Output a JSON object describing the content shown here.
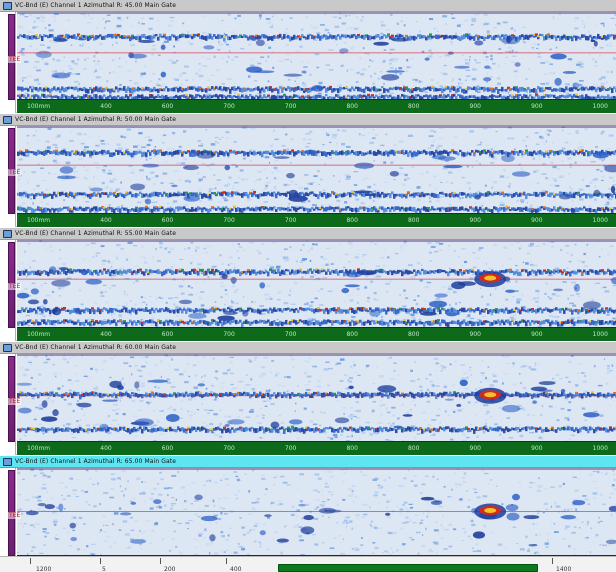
{
  "panels": [
    {
      "title": "VC-Bnd (E) Channel 1 Azimuthal  R: 45.00 Main Gate",
      "gate_label": "TEE",
      "active": false
    },
    {
      "title": "VC-Bnd (E) Channel 1 Azimuthal  R: 50.00 Main Gate",
      "gate_label": "TEE",
      "active": false
    },
    {
      "title": "VC-Bnd (E) Channel 1 Azimuthal  R: 55.00 Main Gate",
      "gate_label": "TEE",
      "active": false
    },
    {
      "title": "VC-Bnd (E) Channel 1 Azimuthal  R: 60.00 Main Gate",
      "gate_label": "TEE",
      "active": false
    },
    {
      "title": "VC-Bnd (E) Channel 1 Azimuthal  R: 65.00 Main Gate",
      "gate_label": "TEE",
      "active": true
    }
  ],
  "axis_labels": [
    "100mm",
    "400",
    "600",
    "700",
    "700",
    "800",
    "800",
    "900",
    "900",
    "1000"
  ],
  "footer": {
    "ruler_labels": [
      "1200",
      "5",
      "200",
      "400",
      "1400"
    ]
  },
  "colors": {
    "scan_background": "#dbe5f3",
    "axis_bar": "#0c6a1a",
    "active_titlebar": "#5de6f2",
    "side_strip": "#8d2a8c",
    "gate_line": "#d8283a"
  },
  "icons": {
    "window": "window-icon"
  }
}
